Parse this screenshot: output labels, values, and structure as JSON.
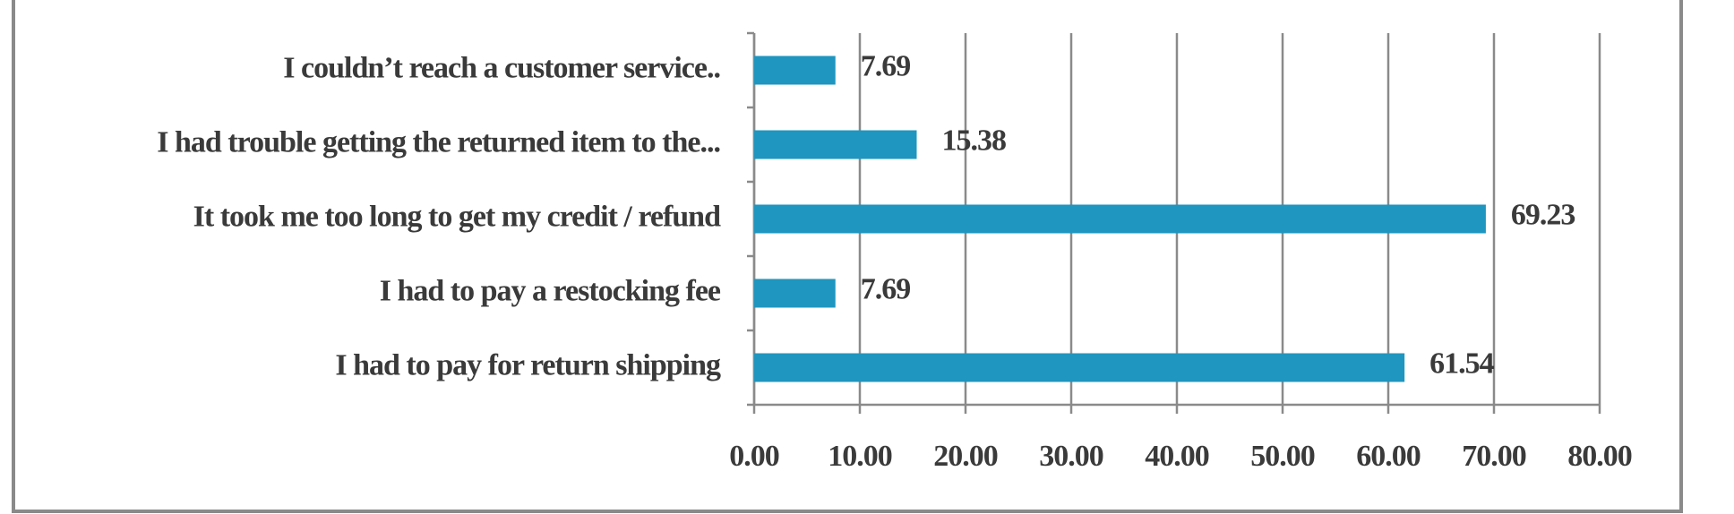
{
  "chart_data": {
    "type": "bar",
    "orientation": "horizontal",
    "categories": [
      "I couldn’t reach a customer service..",
      "I had trouble getting the returned item to the...",
      "It took me too long to get my credit / refund",
      "I had to pay a restocking fee",
      "I had to pay for return shipping"
    ],
    "values": [
      7.69,
      15.38,
      69.23,
      7.69,
      61.54
    ],
    "color": "#1f96bf",
    "xlim": [
      0,
      80
    ],
    "xticks": [
      {
        "value": 0,
        "label": "0.00"
      },
      {
        "value": 10,
        "label": "10.00"
      },
      {
        "value": 20,
        "label": "20.00"
      },
      {
        "value": 30,
        "label": "30.00"
      },
      {
        "value": 40,
        "label": "40.00"
      },
      {
        "value": 50,
        "label": "50.00"
      },
      {
        "value": 60,
        "label": "60.00"
      },
      {
        "value": 70,
        "label": "70.00"
      },
      {
        "value": 80,
        "label": "80.00"
      }
    ],
    "grid": true
  }
}
